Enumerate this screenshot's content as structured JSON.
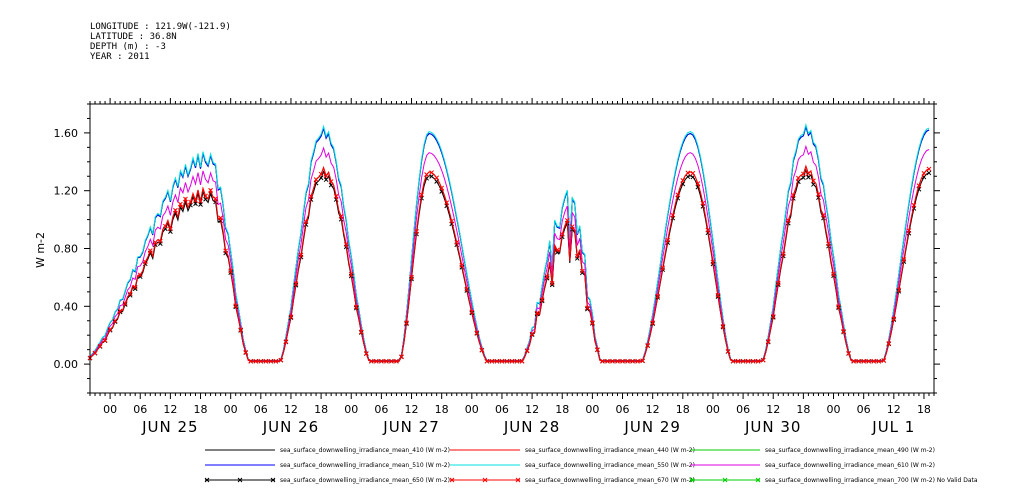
{
  "header": {
    "longitude": "LONGITUDE : 121.9W(-121.9)",
    "latitude": "LATITUDE : 36.8N",
    "depth": "DEPTH (m) : -3",
    "year": "YEAR : 2011"
  },
  "chart_data": {
    "type": "line",
    "ylabel": "W m-2",
    "ylim": [
      -0.2,
      1.8
    ],
    "y_ticks": [
      "0.00",
      "0.40",
      "0.80",
      "1.20",
      "1.60"
    ],
    "xlim_hours": [
      -4,
      164
    ],
    "hour_ticks": [
      "00",
      "06",
      "12",
      "18",
      "00",
      "06",
      "12",
      "18",
      "00",
      "06",
      "12",
      "18",
      "00",
      "06",
      "12",
      "18",
      "00",
      "06",
      "12",
      "18",
      "00",
      "06",
      "12",
      "18",
      "00",
      "06",
      "12",
      "18"
    ],
    "day_labels": [
      "JUN 25",
      "JUN 26",
      "JUN 27",
      "JUN 28",
      "JUN 29",
      "JUN 30",
      "JUL 1"
    ],
    "day_peaks": [
      {
        "start": -6,
        "end": 28,
        "peak": 1.22,
        "center": 19.5,
        "noise": 0.1
      },
      {
        "start": 33.5,
        "end": 52,
        "peak": 1.36,
        "center": 42.5,
        "noise": 0.05
      },
      {
        "start": 57.5,
        "end": 75.5,
        "peak": 1.33,
        "center": 63.5,
        "noise": 0.0
      },
      {
        "start": 81.5,
        "end": 98,
        "peak": 1.0,
        "center": 91.5,
        "noise": 0.3
      },
      {
        "start": 105.5,
        "end": 124,
        "peak": 1.33,
        "center": 115.5,
        "noise": 0.0
      },
      {
        "start": 129.5,
        "end": 148,
        "peak": 1.37,
        "center": 138.5,
        "noise": 0.05
      },
      {
        "start": 153.5,
        "end": 172,
        "peak": 1.35,
        "center": 163.0,
        "noise": 0.0
      }
    ],
    "series": [
      {
        "name": "sea_surface_downwelling_irradiance_mean_410 (W m-2)",
        "color": "#000000",
        "scale": 1.2,
        "marker": false
      },
      {
        "name": "sea_surface_downwelling_irradiance_mean_440 (W m-2)",
        "color": "#ff0000",
        "scale": 1.0,
        "marker": false
      },
      {
        "name": "sea_surface_downwelling_irradiance_mean_490 (W m-2)",
        "color": "#00cc00",
        "scale": 1.2,
        "marker": false
      },
      {
        "name": "sea_surface_downwelling_irradiance_mean_510 (W m-2)",
        "color": "#0000ff",
        "scale": 1.2,
        "marker": false
      },
      {
        "name": "sea_surface_downwelling_irradiance_mean_550 (W m-2)",
        "color": "#00e0e0",
        "scale": 1.21,
        "marker": false
      },
      {
        "name": "sea_surface_downwelling_irradiance_mean_610 (W m-2)",
        "color": "#e000e0",
        "scale": 1.1,
        "marker": false
      },
      {
        "name": "sea_surface_downwelling_irradiance_mean_650 (W m-2)",
        "color": "#000000",
        "scale": 0.98,
        "marker": true
      },
      {
        "name": "sea_surface_downwelling_irradiance_mean_670 (W m-2)",
        "color": "#ff0000",
        "scale": 1.0,
        "marker": true
      },
      {
        "name": "sea_surface_downwelling_irradiance_mean_700 (W m-2) No Valid Data",
        "color": "#00cc00",
        "scale": 0,
        "marker": true
      }
    ]
  }
}
